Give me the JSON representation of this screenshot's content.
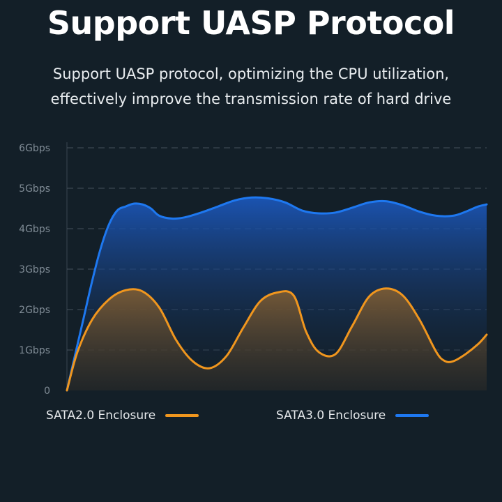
{
  "header": {
    "title": "Support UASP Protocol",
    "subtitle_line1": "Support UASP protocol, optimizing the CPU utilization,",
    "subtitle_line2": "effectively improve the transmission rate of hard drive"
  },
  "legend": {
    "sata2_label": "SATA2.0 Enclosure",
    "sata3_label": "SATA3.0 Enclosure"
  },
  "chart_data": {
    "type": "area",
    "title": "",
    "xlabel": "",
    "ylabel": "",
    "ylim": [
      0,
      6
    ],
    "xlim": [
      0,
      100
    ],
    "y_ticks": [
      0,
      1,
      2,
      3,
      4,
      5,
      6
    ],
    "y_tick_labels": [
      "0",
      "1Gbps",
      "2Gbps",
      "3Gbps",
      "4Gbps",
      "5Gbps",
      "6Gbps"
    ],
    "grid": true,
    "legend_position": "bottom",
    "series": [
      {
        "name": "SATA2.0 Enclosure",
        "color": "#f0961e",
        "x": [
          0,
          2.5,
          6,
          10,
          14,
          18,
          22,
          26,
          30,
          34,
          38,
          42,
          46,
          50,
          54,
          57,
          60,
          64,
          68,
          72,
          76,
          80,
          84,
          88,
          90,
          92,
          95,
          98,
          100
        ],
        "y": [
          0,
          0.95,
          1.75,
          2.25,
          2.48,
          2.45,
          2.05,
          1.25,
          0.72,
          0.55,
          0.85,
          1.55,
          2.2,
          2.42,
          2.35,
          1.45,
          0.95,
          0.9,
          1.6,
          2.32,
          2.52,
          2.35,
          1.75,
          0.95,
          0.73,
          0.72,
          0.9,
          1.15,
          1.38
        ]
      },
      {
        "name": "SATA3.0 Enclosure",
        "color": "#1e78f0",
        "x": [
          0,
          2,
          4,
          6,
          8,
          10,
          12,
          14,
          16,
          18,
          20,
          22,
          25,
          28,
          32,
          36,
          40,
          44,
          48,
          52,
          56,
          60,
          64,
          68,
          72,
          76,
          80,
          84,
          88,
          92,
          95,
          98,
          100
        ],
        "y": [
          0,
          0.9,
          1.8,
          2.7,
          3.5,
          4.1,
          4.45,
          4.55,
          4.62,
          4.6,
          4.5,
          4.32,
          4.25,
          4.28,
          4.4,
          4.55,
          4.7,
          4.77,
          4.75,
          4.65,
          4.45,
          4.38,
          4.4,
          4.52,
          4.65,
          4.68,
          4.58,
          4.42,
          4.32,
          4.32,
          4.42,
          4.55,
          4.6
        ]
      }
    ]
  }
}
